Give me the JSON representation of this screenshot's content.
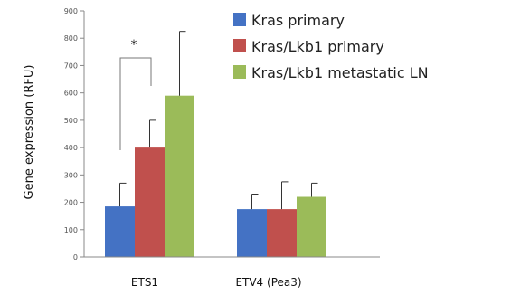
{
  "chart_data": {
    "type": "bar",
    "title": "",
    "xlabel": "",
    "ylabel": "Gene expression (RFU)",
    "ylim": [
      0,
      900
    ],
    "yticks": [
      "0",
      "100",
      "200",
      "300",
      "400",
      "500",
      "600",
      "700",
      "800",
      "900"
    ],
    "categories": [
      "ETS1",
      "ETV4 (Pea3)"
    ],
    "series": [
      {
        "name": "Kras primary",
        "color": "#4472c4",
        "values": [
          185,
          175
        ],
        "errors": [
          85,
          55
        ]
      },
      {
        "name": "Kras/Lkb1 primary",
        "color": "#c0504d",
        "values": [
          400,
          175
        ],
        "errors": [
          100,
          100
        ]
      },
      {
        "name": "Kras/Lkb1 metastatic LN",
        "color": "#9bbb59",
        "values": [
          590,
          220
        ],
        "errors": [
          235,
          50
        ]
      }
    ],
    "annotations": [
      {
        "label": "*",
        "between": [
          "Kras primary",
          "Kras/Lkb1 primary"
        ],
        "category": "ETS1"
      }
    ],
    "legend_position": "top-right",
    "grid": false
  }
}
